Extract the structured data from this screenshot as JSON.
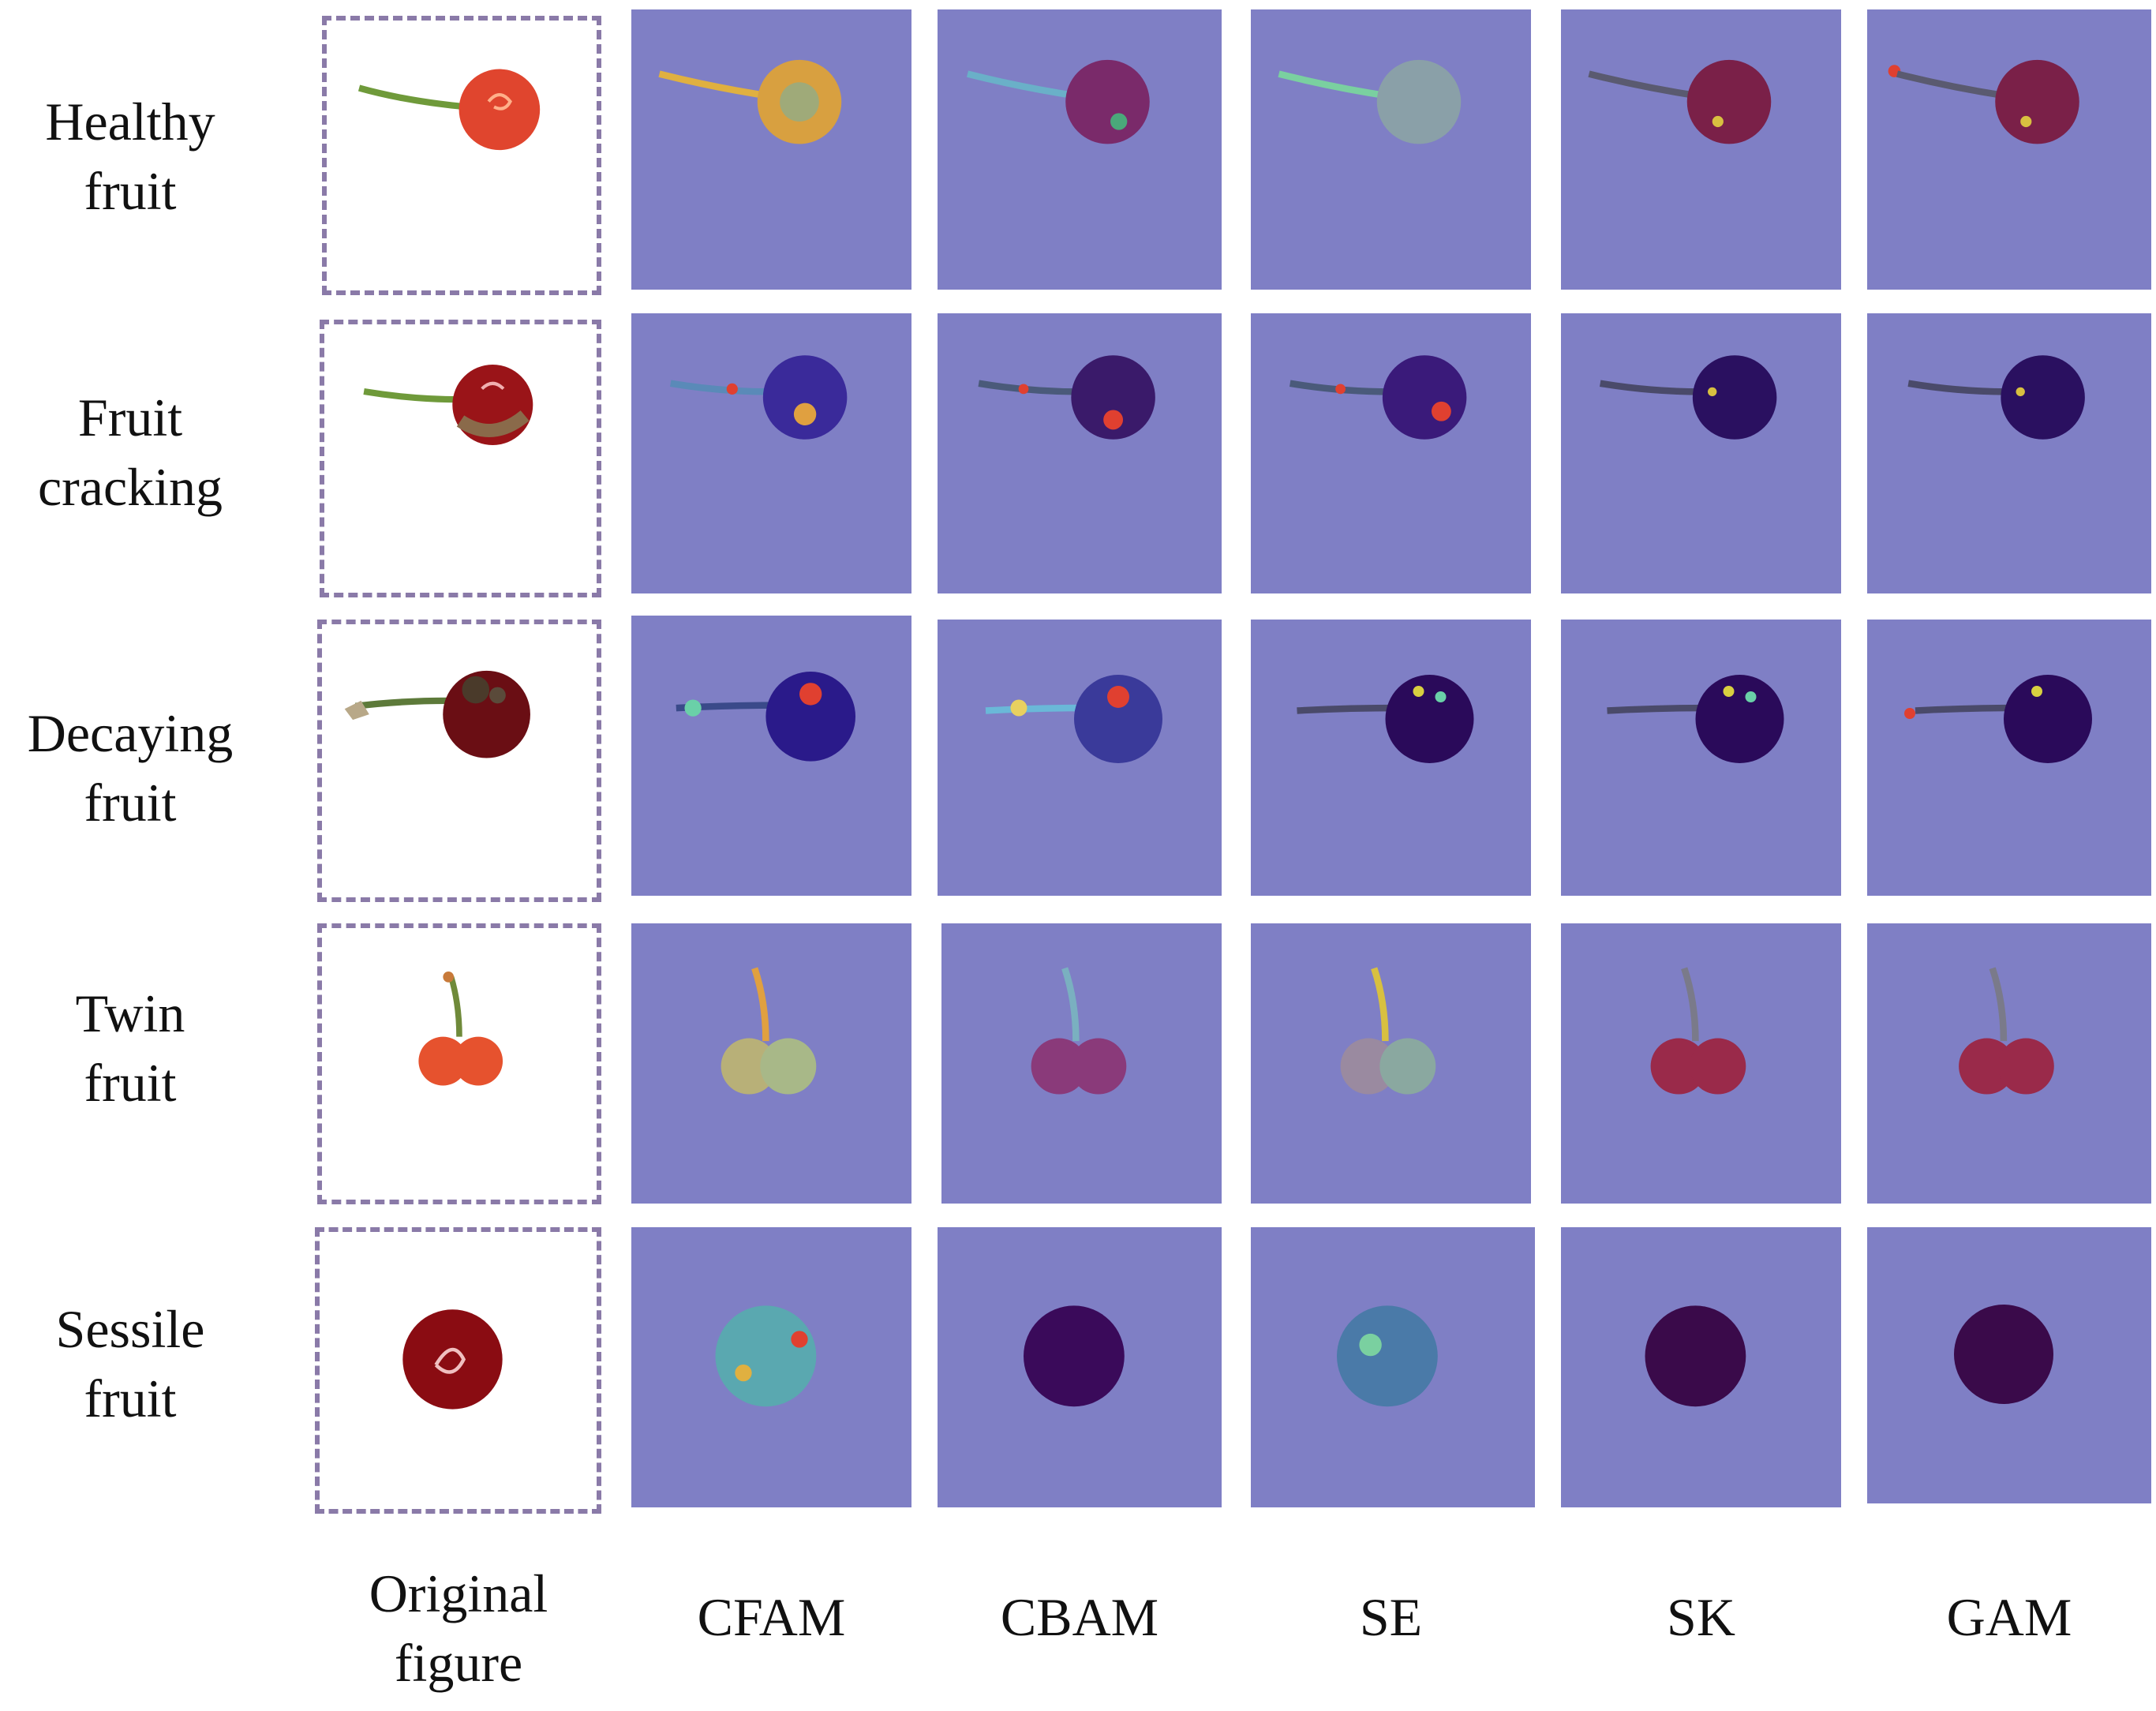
{
  "rows": [
    {
      "line1": "Healthy",
      "line2": "fruit"
    },
    {
      "line1": "Fruit",
      "line2": "cracking"
    },
    {
      "line1": "Decaying",
      "line2": "fruit"
    },
    {
      "line1": "Twin",
      "line2": "fruit"
    },
    {
      "line1": "Sessile",
      "line2": "fruit"
    }
  ],
  "columns": {
    "original": {
      "line1": "Original",
      "line2": "figure"
    },
    "methods": [
      "CFAM",
      "CBAM",
      "SE",
      "SK",
      "GAM"
    ]
  },
  "colors": {
    "heatmap_background": "#7f7fc5",
    "dashed_border": "#8a7aa8"
  }
}
